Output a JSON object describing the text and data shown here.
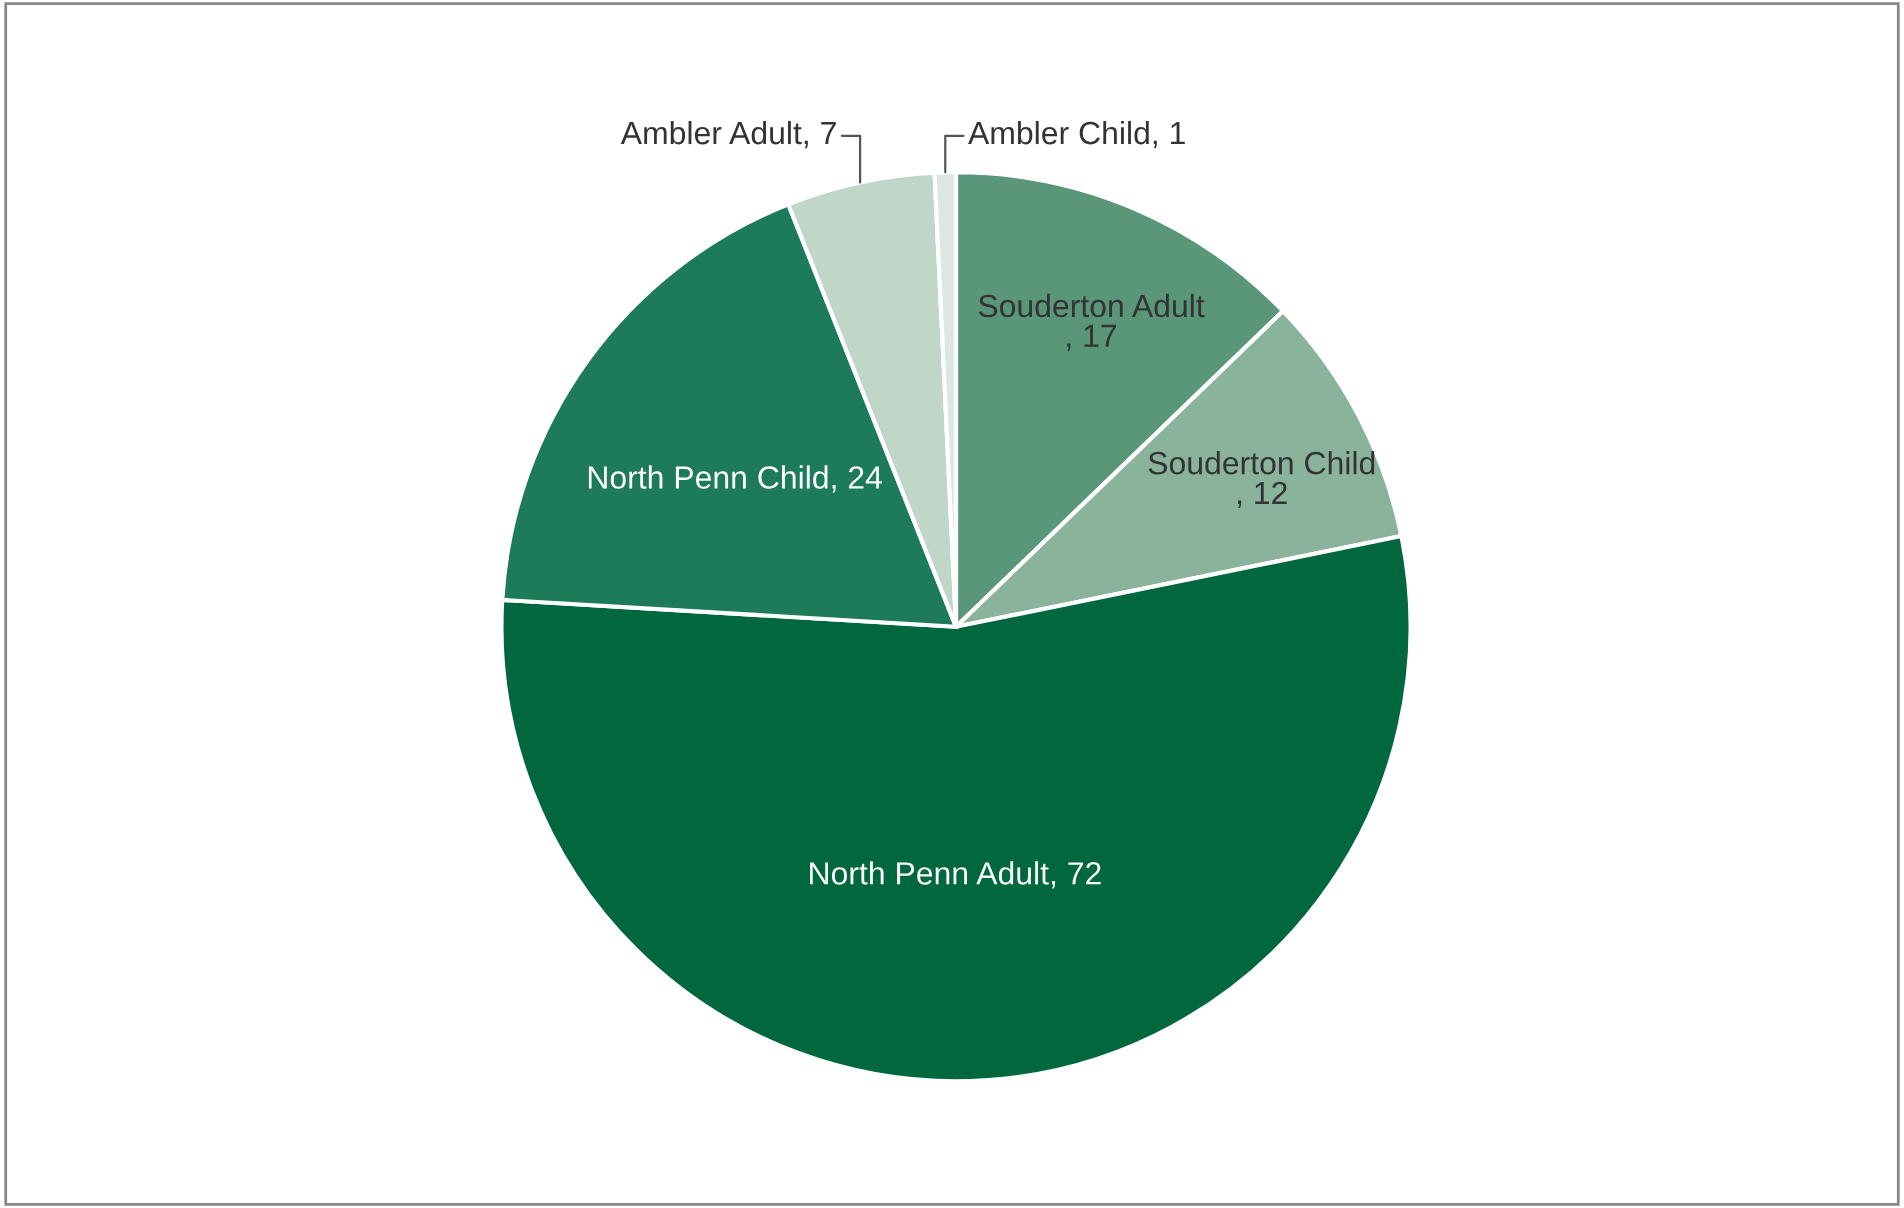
{
  "chart_data": {
    "type": "pie",
    "categories": [
      "Souderton Adult",
      "Souderton Child",
      "North Penn Adult",
      "North Penn Child",
      "Ambler Adult",
      "Ambler Child"
    ],
    "values": [
      17,
      12,
      72,
      24,
      7,
      1
    ],
    "value_labels": [
      ", 17",
      ", 12",
      ", 72",
      ", 24",
      ", 7",
      ", 1"
    ],
    "colors": [
      "#5a9678",
      "#8ab39c",
      "#00673f",
      "#1e7b5a",
      "#bfd6c9",
      "#dbe8e1"
    ],
    "legend": false
  }
}
